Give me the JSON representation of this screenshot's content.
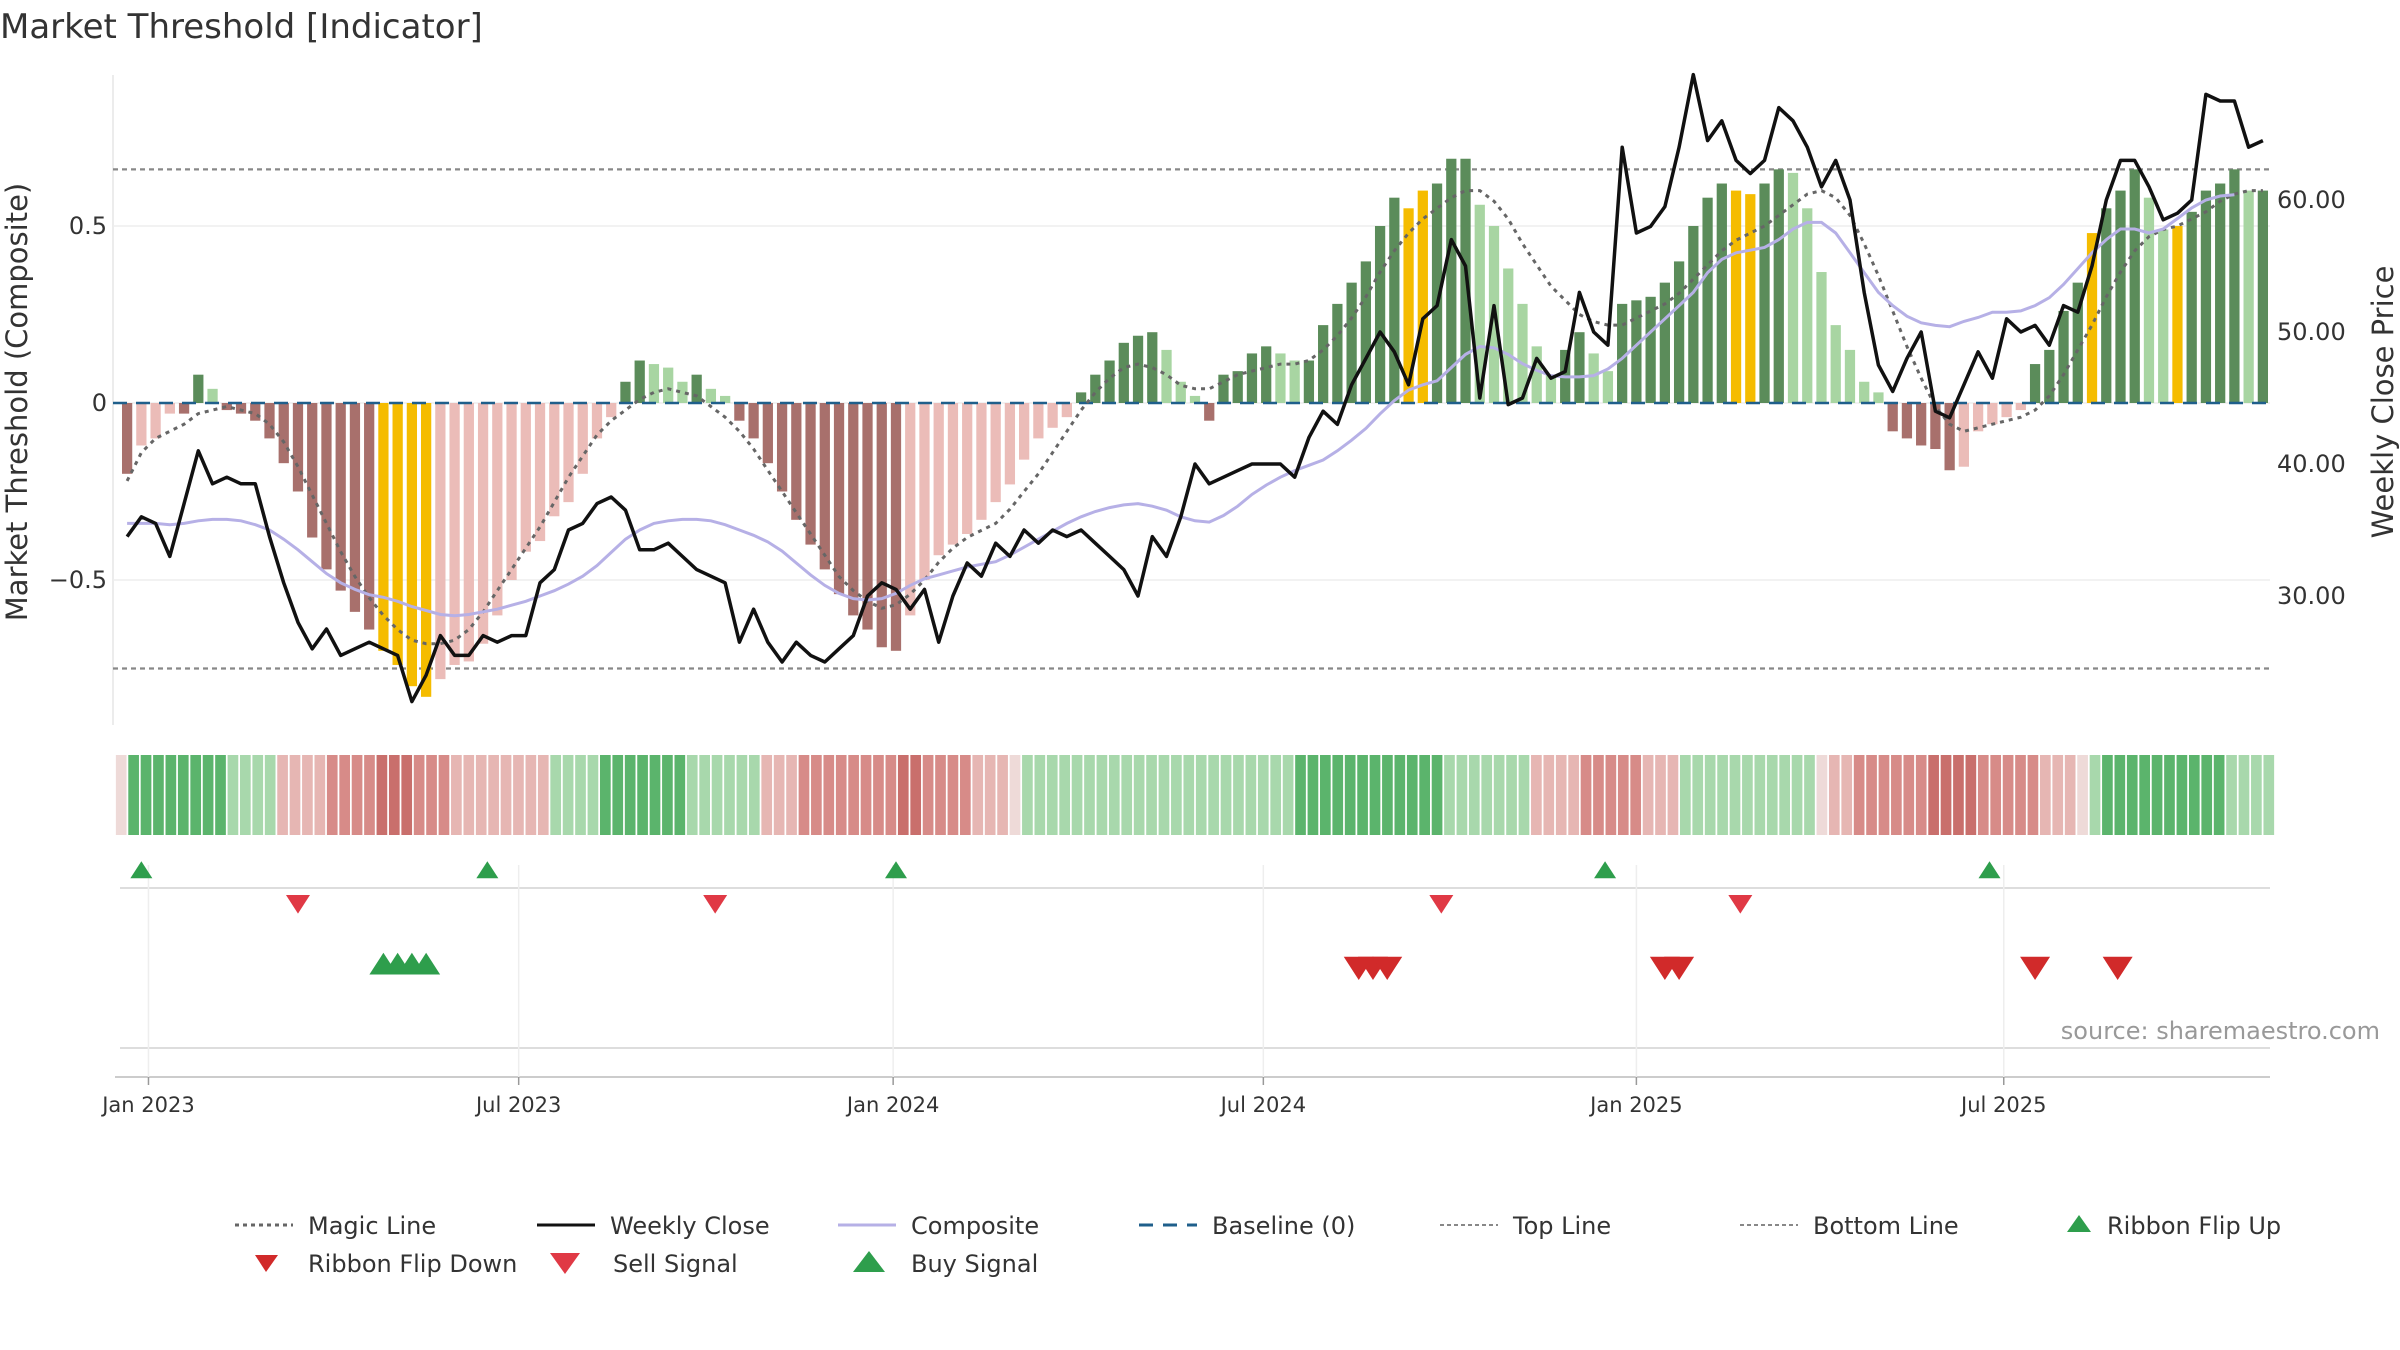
{
  "chart_data": {
    "type": "bar",
    "title": "Market Threshold [Indicator]",
    "ylabel": "Market Threshold (Composite)",
    "y2label": "Weekly Close Price",
    "ylim": [
      -0.9,
      0.9
    ],
    "y2lim": [
      20,
      70
    ],
    "yticks": [
      {
        "v": 0.5,
        "label": "0.5"
      },
      {
        "v": 0,
        "label": "0"
      },
      {
        "v": -0.5,
        "label": "−0.5"
      }
    ],
    "y2ticks": [
      {
        "v": 60,
        "label": "60.00"
      },
      {
        "v": 50,
        "label": "50.00"
      },
      {
        "v": 40,
        "label": "40.00"
      },
      {
        "v": 30,
        "label": "30.00"
      }
    ],
    "xticks": [
      {
        "label": "Jan 2023",
        "week": 1.5
      },
      {
        "label": "Jul 2023",
        "week": 27.5
      },
      {
        "label": "Jan 2024",
        "week": 53.8
      },
      {
        "label": "Jul 2024",
        "week": 79.8
      },
      {
        "label": "Jan 2025",
        "week": 106
      },
      {
        "label": "Jul 2025",
        "week": 131.8
      }
    ],
    "top_line": 0.66,
    "bottom_line": -0.75,
    "baseline": 0,
    "grid": true,
    "legend_position": "bottom",
    "source": "source: sharemaestro.com",
    "colors": {
      "bull_strong": "#5b8c5a",
      "bull_weak": "#a8d5a2",
      "bear_strong": "#a8706c",
      "bear_weak": "#ebbcb8",
      "extreme": "#f5bc00",
      "close": "#111111",
      "composite": "#b6b0e6",
      "magic": "#666666",
      "baseline": "#1f5f8b",
      "flip_up": "#2e9e4c",
      "flip_down": "#d12a2a",
      "sell": "#e03945",
      "buy": "#2e9e4c"
    },
    "series": [
      {
        "name": "Composite",
        "values": [
          -0.2,
          -0.12,
          -0.1,
          -0.03,
          -0.03,
          0.08,
          0.04,
          -0.02,
          -0.03,
          -0.05,
          -0.1,
          -0.17,
          -0.25,
          -0.38,
          -0.47,
          -0.53,
          -0.59,
          -0.64,
          -0.7,
          -0.74,
          -0.8,
          -0.83,
          -0.78,
          -0.74,
          -0.73,
          -0.68,
          -0.6,
          -0.5,
          -0.42,
          -0.39,
          -0.32,
          -0.28,
          -0.2,
          -0.1,
          -0.04,
          0.06,
          0.12,
          0.11,
          0.1,
          0.06,
          0.08,
          0.04,
          0.02,
          -0.05,
          -0.1,
          -0.17,
          -0.25,
          -0.33,
          -0.4,
          -0.47,
          -0.54,
          -0.6,
          -0.64,
          -0.69,
          -0.7,
          -0.6,
          -0.5,
          -0.43,
          -0.4,
          -0.37,
          -0.33,
          -0.28,
          -0.23,
          -0.16,
          -0.1,
          -0.07,
          -0.04,
          0.03,
          0.08,
          0.12,
          0.17,
          0.19,
          0.2,
          0.15,
          0.06,
          0.02,
          -0.05,
          0.08,
          0.09,
          0.14,
          0.16,
          0.14,
          0.12,
          0.12,
          0.22,
          0.28,
          0.34,
          0.4,
          0.5,
          0.58,
          0.55,
          0.6,
          0.62,
          0.69,
          0.69,
          0.56,
          0.5,
          0.38,
          0.28,
          0.16,
          0.08,
          0.15,
          0.2,
          0.14,
          0.09,
          0.28,
          0.29,
          0.3,
          0.34,
          0.4,
          0.5,
          0.58,
          0.62,
          0.6,
          0.59,
          0.62,
          0.66,
          0.65,
          0.55,
          0.37,
          0.22,
          0.15,
          0.06,
          0.03,
          -0.08,
          -0.1,
          -0.12,
          -0.13,
          -0.19,
          -0.18,
          -0.08,
          -0.06,
          -0.04,
          -0.02,
          0.11,
          0.15,
          0.26,
          0.34,
          0.48,
          0.55,
          0.6,
          0.66,
          0.58,
          0.49,
          0.5,
          0.54,
          0.6,
          0.62,
          0.66,
          0.6,
          0.6
        ]
      },
      {
        "name": "Weekly Close",
        "values": [
          34.5,
          36,
          35.5,
          33,
          37,
          41,
          38.5,
          39,
          38.5,
          38.5,
          34.5,
          31,
          28,
          26,
          27.5,
          25.5,
          26,
          26.5,
          26,
          25.5,
          22,
          24,
          27,
          25.5,
          25.5,
          27,
          26.5,
          27,
          27,
          31,
          32,
          35,
          35.5,
          37,
          37.5,
          36.5,
          33.5,
          33.5,
          34,
          33,
          32,
          31.5,
          31,
          26.5,
          29,
          26.5,
          25,
          26.5,
          25.5,
          25,
          26,
          27,
          30,
          31,
          30.5,
          29,
          30.5,
          26.5,
          30,
          32.5,
          31.5,
          34,
          33,
          35,
          34,
          35,
          34.5,
          35,
          34,
          33,
          32,
          30,
          34.5,
          33,
          36,
          40,
          38.5,
          39,
          39.5,
          40,
          40,
          40,
          39,
          42,
          44,
          43,
          46,
          48,
          50,
          48.5,
          46,
          51,
          52,
          57,
          55,
          45,
          52,
          44.5,
          45,
          48,
          46.5,
          47,
          53,
          50,
          49,
          64,
          57.5,
          58,
          59.5,
          64,
          69.5,
          64.5,
          66,
          63,
          62,
          63,
          67,
          66,
          64,
          61,
          63,
          60,
          53,
          47.5,
          45.5,
          48,
          50,
          44,
          43.5,
          46,
          48.5,
          46.5,
          51,
          50,
          50.5,
          49,
          52,
          51.5,
          55,
          60,
          63,
          63,
          61,
          58.5,
          59,
          60,
          68,
          67.5,
          67.5,
          64,
          64.5
        ]
      },
      {
        "name": "Composite (smoothed)",
        "values": [
          35.5,
          35.5,
          35.5,
          35.4,
          35.5,
          35.7,
          35.8,
          35.8,
          35.7,
          35.4,
          35,
          34.3,
          33.5,
          32.6,
          31.7,
          31,
          30.5,
          30.1,
          29.9,
          29.6,
          29.2,
          28.9,
          28.6,
          28.5,
          28.6,
          28.8,
          29,
          29.3,
          29.6,
          30,
          30.4,
          30.9,
          31.5,
          32.3,
          33.3,
          34.3,
          35,
          35.5,
          35.7,
          35.8,
          35.8,
          35.7,
          35.4,
          35,
          34.6,
          34.1,
          33.4,
          32.5,
          31.6,
          30.8,
          30.2,
          29.8,
          29.7,
          29.8,
          30.2,
          30.8,
          31.3,
          31.6,
          31.9,
          32.2,
          32.4,
          32.6,
          33.1,
          33.7,
          34.3,
          34.9,
          35.5,
          36,
          36.4,
          36.7,
          36.9,
          37,
          36.8,
          36.5,
          36,
          35.7,
          35.6,
          36.1,
          36.8,
          37.7,
          38.4,
          39,
          39.5,
          39.9,
          40.3,
          41,
          41.8,
          42.7,
          43.8,
          44.8,
          45.6,
          46,
          46.3,
          47.3,
          48.3,
          48.9,
          48.8,
          48.3,
          47.6,
          47.1,
          46.7,
          46.6,
          46.6,
          46.7,
          47.2,
          48,
          49,
          50,
          51,
          52,
          53,
          54.5,
          55.5,
          56,
          56.2,
          56.4,
          57,
          57.8,
          58.3,
          58.3,
          57.5,
          56,
          54.5,
          53,
          52,
          51.2,
          50.7,
          50.5,
          50.4,
          50.8,
          51.1,
          51.5,
          51.5,
          51.6,
          52,
          52.6,
          53.6,
          54.8,
          56,
          57,
          57.8,
          57.8,
          57.5,
          57.8,
          58.6,
          59.4,
          60,
          60.3,
          60.4
        ]
      },
      {
        "name": "Magic Line",
        "values": [
          -0.22,
          -0.14,
          -0.1,
          -0.08,
          -0.06,
          -0.03,
          -0.02,
          -0.01,
          -0.02,
          -0.03,
          -0.06,
          -0.11,
          -0.18,
          -0.26,
          -0.34,
          -0.42,
          -0.49,
          -0.55,
          -0.6,
          -0.64,
          -0.67,
          -0.68,
          -0.68,
          -0.67,
          -0.64,
          -0.59,
          -0.53,
          -0.47,
          -0.41,
          -0.35,
          -0.28,
          -0.21,
          -0.15,
          -0.09,
          -0.05,
          -0.02,
          0.01,
          0.03,
          0.04,
          0.03,
          0.02,
          -0.01,
          -0.04,
          -0.08,
          -0.13,
          -0.19,
          -0.25,
          -0.31,
          -0.37,
          -0.43,
          -0.49,
          -0.53,
          -0.56,
          -0.58,
          -0.57,
          -0.54,
          -0.5,
          -0.45,
          -0.41,
          -0.38,
          -0.36,
          -0.34,
          -0.3,
          -0.25,
          -0.2,
          -0.14,
          -0.08,
          -0.02,
          0.03,
          0.07,
          0.1,
          0.11,
          0.1,
          0.08,
          0.05,
          0.04,
          0.04,
          0.06,
          0.08,
          0.09,
          0.1,
          0.11,
          0.11,
          0.12,
          0.15,
          0.19,
          0.24,
          0.3,
          0.37,
          0.43,
          0.48,
          0.52,
          0.55,
          0.58,
          0.6,
          0.6,
          0.57,
          0.52,
          0.45,
          0.39,
          0.33,
          0.29,
          0.25,
          0.23,
          0.22,
          0.22,
          0.24,
          0.26,
          0.28,
          0.31,
          0.35,
          0.39,
          0.43,
          0.46,
          0.48,
          0.5,
          0.53,
          0.56,
          0.59,
          0.6,
          0.58,
          0.53,
          0.45,
          0.36,
          0.26,
          0.16,
          0.07,
          -0.01,
          -0.06,
          -0.08,
          -0.07,
          -0.06,
          -0.05,
          -0.04,
          -0.02,
          0.02,
          0.08,
          0.15,
          0.22,
          0.3,
          0.37,
          0.43,
          0.47,
          0.49,
          0.5,
          0.52,
          0.54,
          0.57,
          0.59,
          0.6,
          0.6
        ]
      }
    ],
    "extreme_weeks": [
      18,
      19,
      20,
      21,
      90,
      91,
      113,
      114,
      138,
      144
    ],
    "ribbon": [
      0,
      2,
      2,
      2,
      2,
      2,
      2,
      2,
      2,
      1,
      1,
      1,
      1,
      -1,
      -1,
      -1,
      -1,
      -2,
      -2,
      -2,
      -2,
      -3,
      -3,
      -3,
      -2,
      -2,
      -2,
      -1,
      -1,
      -1,
      -1,
      -1,
      -1,
      -1,
      -1,
      1,
      1,
      1,
      1,
      2,
      2,
      2,
      2,
      2,
      2,
      2,
      1,
      1,
      1,
      1,
      1,
      1,
      -1,
      -1,
      -1,
      -2,
      -2,
      -2,
      -2,
      -2,
      -2,
      -2,
      -2,
      -3,
      -3,
      -2,
      -2,
      -2,
      -2,
      -1,
      -1,
      -1,
      0,
      1,
      1,
      1,
      1,
      1,
      1,
      1,
      1,
      1,
      1,
      1,
      1,
      1,
      1,
      1,
      1,
      1,
      1,
      1,
      1,
      1,
      1,
      2,
      2,
      2,
      2,
      2,
      2,
      2,
      2,
      2,
      2,
      2,
      2,
      1,
      1,
      1,
      1,
      1,
      1,
      1,
      -1,
      -1,
      -1,
      -1,
      -2,
      -2,
      -2,
      -2,
      -2,
      -1,
      -1,
      -1,
      1,
      1,
      1,
      1,
      1,
      1,
      1,
      1,
      1,
      1,
      1,
      0,
      -1,
      -1,
      -2,
      -2,
      -2,
      -2,
      -2,
      -2,
      -3,
      -3,
      -3,
      -3,
      -2,
      -2,
      -2,
      -2,
      -2,
      -1,
      -1,
      -1,
      0,
      1,
      2,
      2,
      2,
      2,
      2,
      2,
      2,
      2,
      2,
      2,
      1,
      1,
      1,
      1
    ],
    "buy_signals_row1": [
      1,
      25.3,
      54,
      103.8,
      130.8
    ],
    "sell_signals_row1": [
      12,
      41.3,
      92.3,
      113.3
    ],
    "ribbon_flip_up": [
      18,
      19,
      20,
      21
    ],
    "ribbon_flip_down_row3": [
      86.5,
      87.5,
      88.5,
      108,
      109,
      134,
      139.8
    ]
  },
  "legend": [
    {
      "label": "Magic Line",
      "symbol": "dotted",
      "color": "#666666"
    },
    {
      "label": "Weekly Close",
      "symbol": "solid",
      "color": "#111111"
    },
    {
      "label": "Composite",
      "symbol": "solid",
      "color": "#b6b0e6"
    },
    {
      "label": "Baseline (0)",
      "symbol": "dashed",
      "color": "#1f5f8b"
    },
    {
      "label": "Top Line",
      "symbol": "dotted-thin",
      "color": "#888888"
    },
    {
      "label": "Bottom Line",
      "symbol": "dotted-thin",
      "color": "#888888"
    },
    {
      "label": "Ribbon Flip Up",
      "symbol": "triangle-up",
      "color": "#2e9e4c"
    },
    {
      "label": "Ribbon Flip Down",
      "symbol": "triangle-down",
      "color": "#d12a2a"
    },
    {
      "label": "Sell Signal",
      "symbol": "triangle-down",
      "color": "#e03945"
    },
    {
      "label": "Buy Signal",
      "symbol": "triangle-up",
      "color": "#2e9e4c"
    }
  ]
}
